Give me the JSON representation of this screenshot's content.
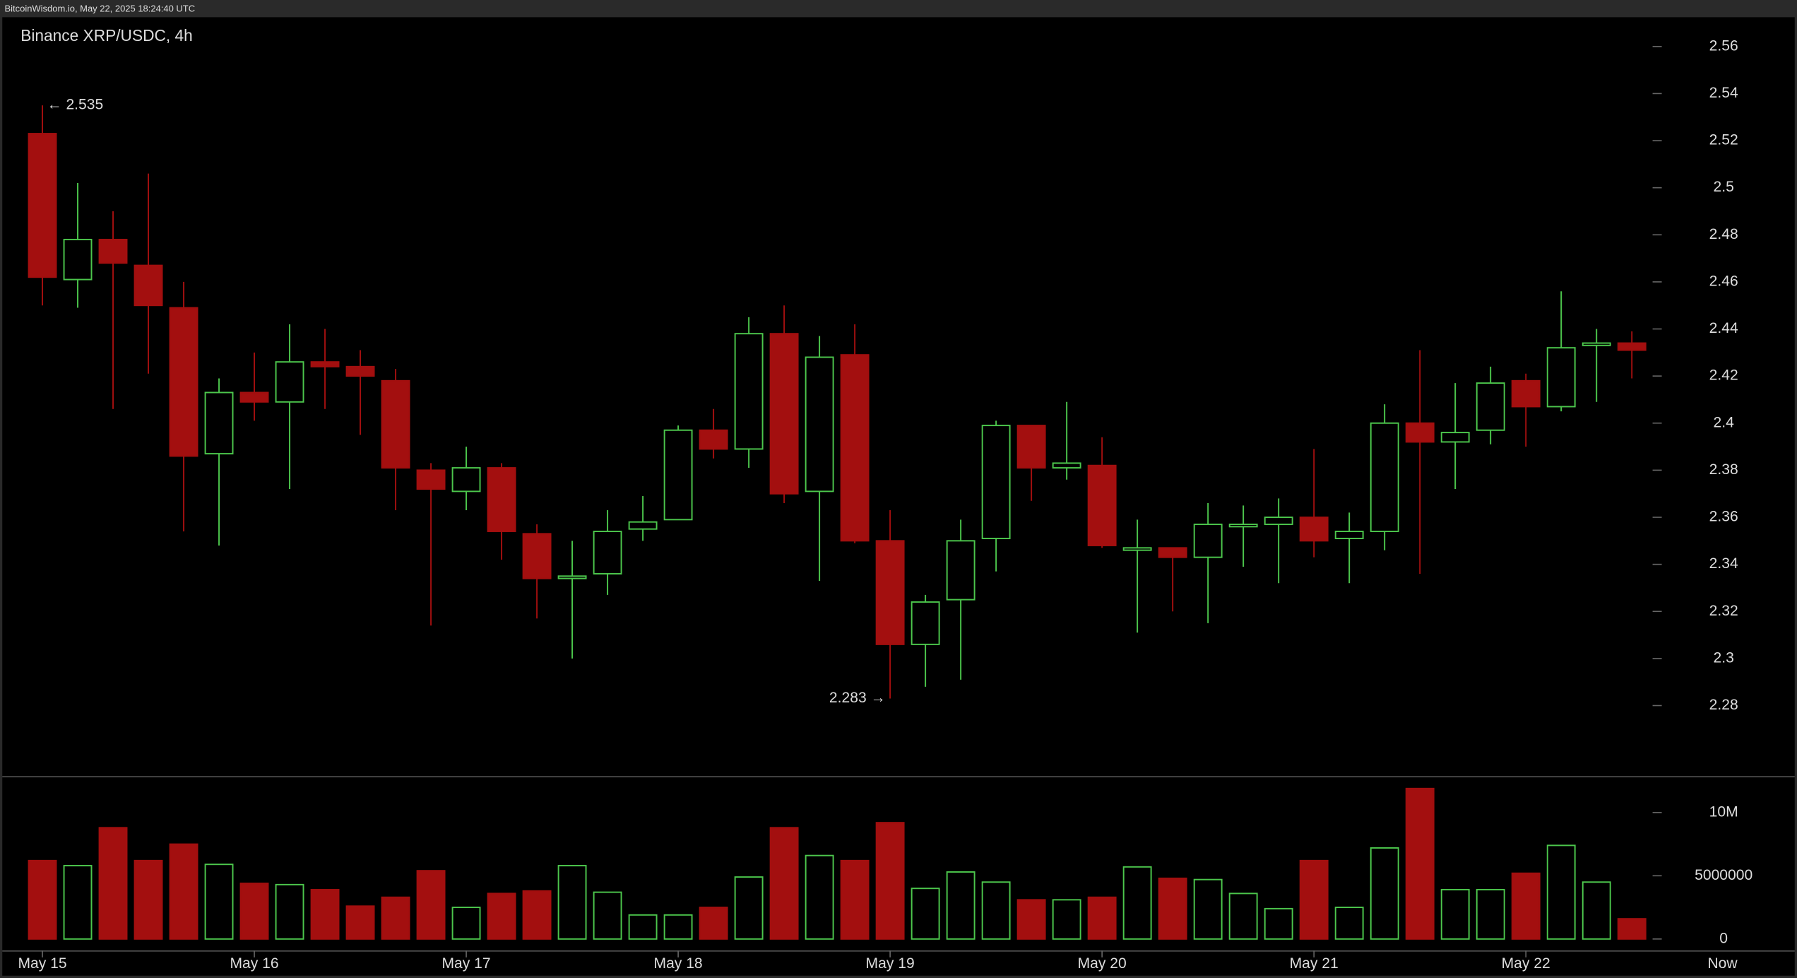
{
  "header": "BitcoinWisdom.io, May 22, 2025 18:24:40 UTC",
  "chart_data": {
    "type": "candlestick",
    "title": "Binance XRP/USDC, 4h",
    "categories": [
      "May 15",
      null,
      null,
      null,
      null,
      null,
      "May 16",
      null,
      null,
      null,
      null,
      null,
      "May 17",
      null,
      null,
      null,
      null,
      null,
      "May 18",
      null,
      null,
      null,
      null,
      null,
      "May 19",
      null,
      null,
      null,
      null,
      null,
      "May 20",
      null,
      null,
      null,
      null,
      null,
      "May 21",
      null,
      null,
      null,
      null,
      null,
      "May 22",
      null,
      null,
      null
    ],
    "open": [
      2.523,
      2.461,
      2.478,
      2.467,
      2.449,
      2.387,
      2.413,
      2.409,
      2.426,
      2.424,
      2.418,
      2.38,
      2.371,
      2.381,
      2.353,
      2.334,
      2.336,
      2.355,
      2.359,
      2.397,
      2.389,
      2.438,
      2.371,
      2.429,
      2.35,
      2.306,
      2.325,
      2.351,
      2.399,
      2.381,
      2.382,
      2.346,
      2.347,
      2.343,
      2.356,
      2.357,
      2.36,
      2.351,
      2.354,
      2.4,
      2.392,
      2.397,
      2.418,
      2.407,
      2.433,
      2.434
    ],
    "high": [
      2.535,
      2.502,
      2.49,
      2.506,
      2.46,
      2.419,
      2.43,
      2.442,
      2.44,
      2.431,
      2.423,
      2.383,
      2.39,
      2.383,
      2.357,
      2.35,
      2.363,
      2.369,
      2.399,
      2.406,
      2.445,
      2.45,
      2.437,
      2.442,
      2.363,
      2.327,
      2.359,
      2.401,
      2.399,
      2.409,
      2.394,
      2.359,
      2.347,
      2.366,
      2.365,
      2.368,
      2.389,
      2.362,
      2.408,
      2.431,
      2.417,
      2.424,
      2.421,
      2.456,
      2.44,
      2.439
    ],
    "low": [
      2.45,
      2.449,
      2.406,
      2.421,
      2.354,
      2.348,
      2.401,
      2.372,
      2.406,
      2.395,
      2.363,
      2.314,
      2.363,
      2.342,
      2.317,
      2.3,
      2.327,
      2.35,
      2.359,
      2.385,
      2.381,
      2.366,
      2.333,
      2.349,
      2.283,
      2.288,
      2.291,
      2.337,
      2.367,
      2.376,
      2.347,
      2.311,
      2.32,
      2.315,
      2.339,
      2.332,
      2.343,
      2.332,
      2.346,
      2.336,
      2.372,
      2.391,
      2.39,
      2.405,
      2.409,
      2.419
    ],
    "close": [
      2.462,
      2.478,
      2.468,
      2.45,
      2.386,
      2.413,
      2.409,
      2.426,
      2.424,
      2.42,
      2.381,
      2.372,
      2.381,
      2.354,
      2.334,
      2.335,
      2.354,
      2.358,
      2.397,
      2.389,
      2.438,
      2.37,
      2.428,
      2.35,
      2.306,
      2.324,
      2.35,
      2.399,
      2.381,
      2.383,
      2.348,
      2.347,
      2.343,
      2.357,
      2.357,
      2.36,
      2.35,
      2.354,
      2.4,
      2.392,
      2.396,
      2.417,
      2.407,
      2.432,
      2.434,
      2.431
    ],
    "up_color": "#4cc64c",
    "down_color": "#a30f0f",
    "ylim": [
      2.25,
      2.572
    ],
    "yticks": [
      2.28,
      2.3,
      2.32,
      2.34,
      2.36,
      2.38,
      2.4,
      2.42,
      2.44,
      2.46,
      2.48,
      2.5,
      2.52,
      2.54,
      2.56
    ],
    "annotations": [
      {
        "text": "← 2.535"
      },
      {
        "text": "2.283 →"
      }
    ],
    "now_label": "Now",
    "volume": {
      "values": [
        6200000,
        5800000,
        8800000,
        6200000,
        7500000,
        5900000,
        4400000,
        4300000,
        3900000,
        2600000,
        3300000,
        5400000,
        2500000,
        3600000,
        3800000,
        5800000,
        3700000,
        1900000,
        1900000,
        2500000,
        4900000,
        8800000,
        6600000,
        6200000,
        9200000,
        4000000,
        5300000,
        4500000,
        3100000,
        3100000,
        3300000,
        5700000,
        4800000,
        4700000,
        3600000,
        2400000,
        6200000,
        2500000,
        7200000,
        11900000,
        3900000,
        3900000,
        5200000,
        7400000,
        4500000,
        1600000
      ],
      "ylim": [
        0,
        12600000
      ],
      "yticks": [
        0,
        5000000,
        {
          "value": 10000000,
          "label": "10M"
        }
      ]
    }
  }
}
